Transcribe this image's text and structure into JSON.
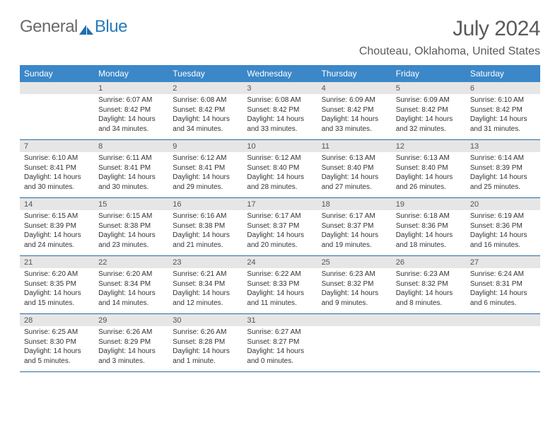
{
  "brand": {
    "part1": "General",
    "part2": "Blue"
  },
  "title": {
    "month": "July 2024",
    "location": "Chouteau, Oklahoma, United States"
  },
  "colors": {
    "header_bg": "#3b87c8",
    "header_fg": "#ffffff",
    "daynum_bg": "#e6e6e6",
    "rule": "#2a6aa5",
    "text": "#333333",
    "title_fg": "#5a5a5a"
  },
  "weekdays": [
    "Sunday",
    "Monday",
    "Tuesday",
    "Wednesday",
    "Thursday",
    "Friday",
    "Saturday"
  ],
  "weeks": [
    {
      "days": [
        {
          "n": "",
          "sunrise": "",
          "sunset": "",
          "daylight": ""
        },
        {
          "n": "1",
          "sunrise": "Sunrise: 6:07 AM",
          "sunset": "Sunset: 8:42 PM",
          "daylight": "Daylight: 14 hours and 34 minutes."
        },
        {
          "n": "2",
          "sunrise": "Sunrise: 6:08 AM",
          "sunset": "Sunset: 8:42 PM",
          "daylight": "Daylight: 14 hours and 34 minutes."
        },
        {
          "n": "3",
          "sunrise": "Sunrise: 6:08 AM",
          "sunset": "Sunset: 8:42 PM",
          "daylight": "Daylight: 14 hours and 33 minutes."
        },
        {
          "n": "4",
          "sunrise": "Sunrise: 6:09 AM",
          "sunset": "Sunset: 8:42 PM",
          "daylight": "Daylight: 14 hours and 33 minutes."
        },
        {
          "n": "5",
          "sunrise": "Sunrise: 6:09 AM",
          "sunset": "Sunset: 8:42 PM",
          "daylight": "Daylight: 14 hours and 32 minutes."
        },
        {
          "n": "6",
          "sunrise": "Sunrise: 6:10 AM",
          "sunset": "Sunset: 8:42 PM",
          "daylight": "Daylight: 14 hours and 31 minutes."
        }
      ]
    },
    {
      "days": [
        {
          "n": "7",
          "sunrise": "Sunrise: 6:10 AM",
          "sunset": "Sunset: 8:41 PM",
          "daylight": "Daylight: 14 hours and 30 minutes."
        },
        {
          "n": "8",
          "sunrise": "Sunrise: 6:11 AM",
          "sunset": "Sunset: 8:41 PM",
          "daylight": "Daylight: 14 hours and 30 minutes."
        },
        {
          "n": "9",
          "sunrise": "Sunrise: 6:12 AM",
          "sunset": "Sunset: 8:41 PM",
          "daylight": "Daylight: 14 hours and 29 minutes."
        },
        {
          "n": "10",
          "sunrise": "Sunrise: 6:12 AM",
          "sunset": "Sunset: 8:40 PM",
          "daylight": "Daylight: 14 hours and 28 minutes."
        },
        {
          "n": "11",
          "sunrise": "Sunrise: 6:13 AM",
          "sunset": "Sunset: 8:40 PM",
          "daylight": "Daylight: 14 hours and 27 minutes."
        },
        {
          "n": "12",
          "sunrise": "Sunrise: 6:13 AM",
          "sunset": "Sunset: 8:40 PM",
          "daylight": "Daylight: 14 hours and 26 minutes."
        },
        {
          "n": "13",
          "sunrise": "Sunrise: 6:14 AM",
          "sunset": "Sunset: 8:39 PM",
          "daylight": "Daylight: 14 hours and 25 minutes."
        }
      ]
    },
    {
      "days": [
        {
          "n": "14",
          "sunrise": "Sunrise: 6:15 AM",
          "sunset": "Sunset: 8:39 PM",
          "daylight": "Daylight: 14 hours and 24 minutes."
        },
        {
          "n": "15",
          "sunrise": "Sunrise: 6:15 AM",
          "sunset": "Sunset: 8:38 PM",
          "daylight": "Daylight: 14 hours and 23 minutes."
        },
        {
          "n": "16",
          "sunrise": "Sunrise: 6:16 AM",
          "sunset": "Sunset: 8:38 PM",
          "daylight": "Daylight: 14 hours and 21 minutes."
        },
        {
          "n": "17",
          "sunrise": "Sunrise: 6:17 AM",
          "sunset": "Sunset: 8:37 PM",
          "daylight": "Daylight: 14 hours and 20 minutes."
        },
        {
          "n": "18",
          "sunrise": "Sunrise: 6:17 AM",
          "sunset": "Sunset: 8:37 PM",
          "daylight": "Daylight: 14 hours and 19 minutes."
        },
        {
          "n": "19",
          "sunrise": "Sunrise: 6:18 AM",
          "sunset": "Sunset: 8:36 PM",
          "daylight": "Daylight: 14 hours and 18 minutes."
        },
        {
          "n": "20",
          "sunrise": "Sunrise: 6:19 AM",
          "sunset": "Sunset: 8:36 PM",
          "daylight": "Daylight: 14 hours and 16 minutes."
        }
      ]
    },
    {
      "days": [
        {
          "n": "21",
          "sunrise": "Sunrise: 6:20 AM",
          "sunset": "Sunset: 8:35 PM",
          "daylight": "Daylight: 14 hours and 15 minutes."
        },
        {
          "n": "22",
          "sunrise": "Sunrise: 6:20 AM",
          "sunset": "Sunset: 8:34 PM",
          "daylight": "Daylight: 14 hours and 14 minutes."
        },
        {
          "n": "23",
          "sunrise": "Sunrise: 6:21 AM",
          "sunset": "Sunset: 8:34 PM",
          "daylight": "Daylight: 14 hours and 12 minutes."
        },
        {
          "n": "24",
          "sunrise": "Sunrise: 6:22 AM",
          "sunset": "Sunset: 8:33 PM",
          "daylight": "Daylight: 14 hours and 11 minutes."
        },
        {
          "n": "25",
          "sunrise": "Sunrise: 6:23 AM",
          "sunset": "Sunset: 8:32 PM",
          "daylight": "Daylight: 14 hours and 9 minutes."
        },
        {
          "n": "26",
          "sunrise": "Sunrise: 6:23 AM",
          "sunset": "Sunset: 8:32 PM",
          "daylight": "Daylight: 14 hours and 8 minutes."
        },
        {
          "n": "27",
          "sunrise": "Sunrise: 6:24 AM",
          "sunset": "Sunset: 8:31 PM",
          "daylight": "Daylight: 14 hours and 6 minutes."
        }
      ]
    },
    {
      "days": [
        {
          "n": "28",
          "sunrise": "Sunrise: 6:25 AM",
          "sunset": "Sunset: 8:30 PM",
          "daylight": "Daylight: 14 hours and 5 minutes."
        },
        {
          "n": "29",
          "sunrise": "Sunrise: 6:26 AM",
          "sunset": "Sunset: 8:29 PM",
          "daylight": "Daylight: 14 hours and 3 minutes."
        },
        {
          "n": "30",
          "sunrise": "Sunrise: 6:26 AM",
          "sunset": "Sunset: 8:28 PM",
          "daylight": "Daylight: 14 hours and 1 minute."
        },
        {
          "n": "31",
          "sunrise": "Sunrise: 6:27 AM",
          "sunset": "Sunset: 8:27 PM",
          "daylight": "Daylight: 14 hours and 0 minutes."
        },
        {
          "n": "",
          "sunrise": "",
          "sunset": "",
          "daylight": ""
        },
        {
          "n": "",
          "sunrise": "",
          "sunset": "",
          "daylight": ""
        },
        {
          "n": "",
          "sunrise": "",
          "sunset": "",
          "daylight": ""
        }
      ]
    }
  ]
}
